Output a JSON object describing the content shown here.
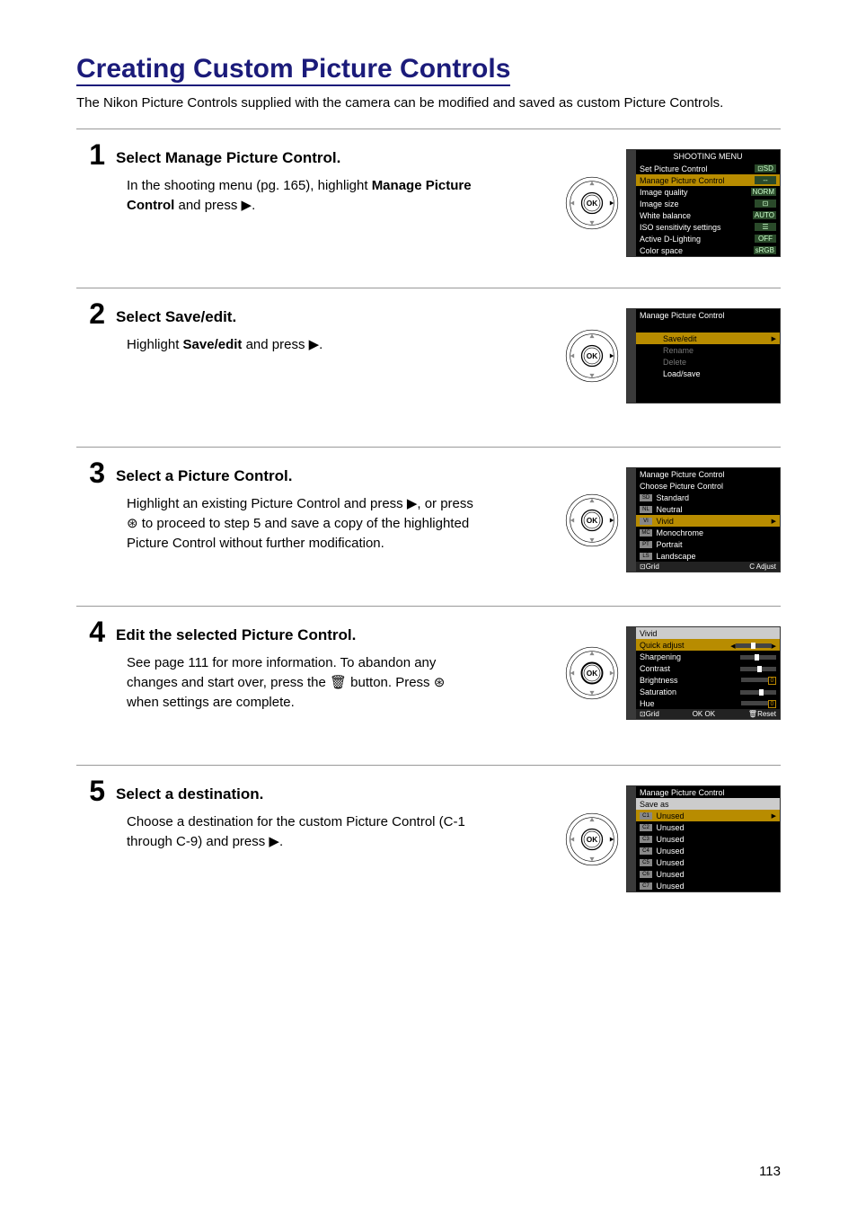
{
  "page": {
    "title": "Creating Custom Picture Controls",
    "intro": "The Nikon Picture Controls supplied with the camera can be modified and saved as custom Picture Controls.",
    "page_number": "113"
  },
  "steps": [
    {
      "num": "1",
      "title_pre": "Select ",
      "title_bold": "Manage Picture Control",
      "title_post": ".",
      "body_pre": "In the shooting menu (pg. 165), highlight ",
      "body_bold": "Manage Picture Control",
      "body_post": " and press ▶.",
      "dpad_highlight": "right"
    },
    {
      "num": "2",
      "title_pre": "Select ",
      "title_bold": "Save/edit",
      "title_post": ".",
      "body_pre": "Highlight ",
      "body_bold": "Save/edit",
      "body_post": " and press ▶.",
      "dpad_highlight": "right"
    },
    {
      "num": "3",
      "title_pre": "",
      "title_bold": "Select a Picture Control.",
      "title_post": "",
      "body_pre": "Highlight an existing Picture Control and press ▶, or press ⊛ to proceed to step 5 and save a copy of the highlighted Picture Control without further modification.",
      "body_bold": "",
      "body_post": "",
      "dpad_highlight": "right"
    },
    {
      "num": "4",
      "title_pre": "",
      "title_bold": "Edit the selected Picture Control.",
      "title_post": "",
      "body_pre": "See page 111 for more information.  To abandon any changes and start over, press the 🗑 button. Press ⊛ when settings are complete.",
      "body_bold": "",
      "body_post": "",
      "dpad_highlight": "ok"
    },
    {
      "num": "5",
      "title_pre": "",
      "title_bold": "Select a destination.",
      "title_post": "",
      "body_pre": "Choose a destination for the custom Picture Control (C-1 through C-9) and press ▶.",
      "body_bold": "",
      "body_post": "",
      "dpad_highlight": "right"
    }
  ],
  "screens": {
    "s1": {
      "header": "SHOOTING MENU",
      "rows": [
        {
          "label": "Set Picture Control",
          "val": "⊡SD",
          "hl": false
        },
        {
          "label": "Manage Picture Control",
          "val": "--",
          "hl": true
        },
        {
          "label": "Image quality",
          "val": "NORM",
          "hl": false
        },
        {
          "label": "Image size",
          "val": "⊡",
          "hl": false
        },
        {
          "label": "White balance",
          "val": "AUTO",
          "hl": false
        },
        {
          "label": "ISO sensitivity settings",
          "val": "☰",
          "hl": false
        },
        {
          "label": "Active D-Lighting",
          "val": "OFF",
          "hl": false
        },
        {
          "label": "Color space",
          "val": "sRGB",
          "hl": false
        }
      ]
    },
    "s2": {
      "header": "Manage Picture Control",
      "rows": [
        {
          "label": "Save/edit",
          "hl": true,
          "arrow": true
        },
        {
          "label": "Rename",
          "hl": false,
          "dim": true
        },
        {
          "label": "Delete",
          "hl": false,
          "dim": true
        },
        {
          "label": "Load/save",
          "hl": false
        }
      ]
    },
    "s3": {
      "header": "Manage Picture Control",
      "sub": "Choose Picture Control",
      "rows": [
        {
          "icon": "SD",
          "label": "Standard",
          "hl": false
        },
        {
          "icon": "NL",
          "label": "Neutral",
          "hl": false
        },
        {
          "icon": "VI",
          "label": "Vivid",
          "hl": true,
          "arrow": true
        },
        {
          "icon": "MC",
          "label": "Monochrome",
          "hl": false
        },
        {
          "icon": "PT",
          "label": "Portrait",
          "hl": false
        },
        {
          "icon": "LS",
          "label": "Landscape",
          "hl": false
        }
      ],
      "footer_left": "⊡Grid",
      "footer_right": "C Adjust"
    },
    "s4": {
      "header": "Vivid",
      "rows": [
        {
          "label": "Quick adjust",
          "hl": true,
          "pos": 0.5,
          "mark": "arrows"
        },
        {
          "label": "Sharpening",
          "pos": 0.45
        },
        {
          "label": "Contrast",
          "pos": 0.55
        },
        {
          "label": "Brightness",
          "pos": 0.5,
          "zero": true
        },
        {
          "label": "Saturation",
          "pos": 0.6
        },
        {
          "label": "Hue",
          "pos": 0.5,
          "zero": true
        }
      ],
      "footer_l": "⊡Grid",
      "footer_m": "OK OK",
      "footer_r": "🗑Reset"
    },
    "s5": {
      "header": "Manage Picture Control",
      "sub": "Save as",
      "rows": [
        {
          "icon": "C1",
          "label": "Unused",
          "hl": true,
          "arrow": true
        },
        {
          "icon": "C2",
          "label": "Unused"
        },
        {
          "icon": "C3",
          "label": "Unused"
        },
        {
          "icon": "C4",
          "label": "Unused"
        },
        {
          "icon": "C5",
          "label": "Unused"
        },
        {
          "icon": "C6",
          "label": "Unused"
        },
        {
          "icon": "C7",
          "label": "Unused"
        }
      ]
    }
  },
  "colors": {
    "title_color": "#1b1b7a",
    "highlight_bg": "#b88c00",
    "screen_bg": "#000000",
    "screen_fg": "#ffffff",
    "value_bg": "#2a4a2a"
  }
}
